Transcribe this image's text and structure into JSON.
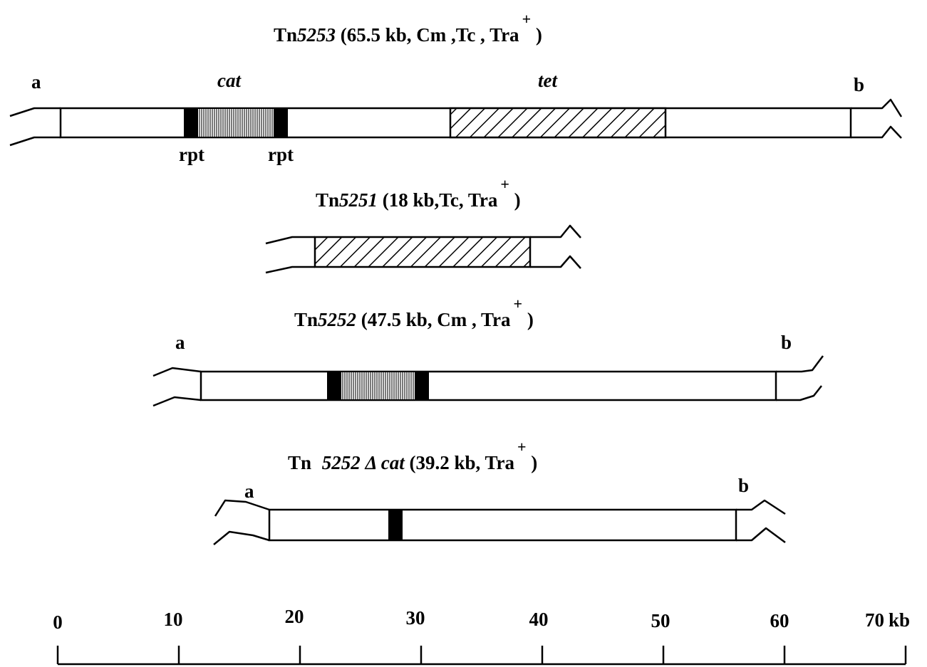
{
  "elements": [
    {
      "title_prefix": "Tn",
      "title_name": "5253",
      "title_details": " (65.5 kb, Cm ,Tc , Tra",
      "title_sup": "+",
      "title_close": " )",
      "end_label_left": "a",
      "end_label_right": "b",
      "gene_cat": "cat",
      "gene_tet": "tet",
      "repeat_label": "rpt"
    },
    {
      "title_prefix": "Tn",
      "title_name": "5251",
      "title_details": " (18 kb,Tc, Tra",
      "title_sup": "+",
      "title_close": " )"
    },
    {
      "title_prefix": "Tn",
      "title_name": "5252",
      "title_details": " (47.5 kb, Cm , Tra",
      "title_sup": "+",
      "title_close": " )",
      "end_label_left": "a",
      "end_label_right": "b"
    },
    {
      "title_prefix": "Tn ",
      "title_name": "5252 Δ cat",
      "title_details": " (39.2 kb, Tra",
      "title_sup": "+",
      "title_close": " )",
      "end_label_left": "a",
      "end_label_right": "b"
    }
  ],
  "scale": {
    "ticks": [
      "0",
      "10",
      "20",
      "30",
      "40",
      "50",
      "60",
      "70"
    ],
    "unit": "kb"
  }
}
